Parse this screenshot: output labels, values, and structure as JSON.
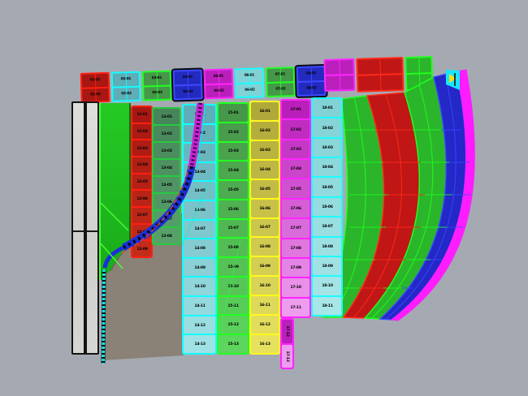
{
  "viewport": {
    "name": "3d-paneling-viewport",
    "background": "#a5aab2",
    "shadow_color": "#8a8177",
    "note": "Curved paneled surface model; panel labels shown as tiny IDs"
  },
  "palette": {
    "red": {
      "cell": "#a81712",
      "cell2": "#c32b1a",
      "border": "#ff1f12"
    },
    "teal": {
      "cell": "#47855a",
      "cell2": "#57a06a",
      "border": "#27c93f"
    },
    "cyan1": {
      "cell": "#5fadb6",
      "cell2": "#9fe2e5",
      "border": "#12fdff"
    },
    "green2": {
      "cell": "#46974a",
      "cell2": "#5cd65c",
      "border": "#22ff22"
    },
    "yellow": {
      "cell": "#b0a93a",
      "cell2": "#e6e260",
      "border": "#fff81d"
    },
    "magenta": {
      "cell": "#bb1fbb",
      "cell2": "#ee9dee",
      "border": "#ff24ff"
    },
    "cyan2": {
      "cell": "#82d2d5",
      "cell2": "#a8e6e8",
      "border": "#1cfcff"
    },
    "blue": {
      "cell": "#232ac0",
      "cell2": "#2b35cc",
      "border": "#3d49ff"
    },
    "band_green": {
      "cell": "#2bb52b",
      "cell2": "#3ecc3e",
      "border": "#1dff1d"
    },
    "band_red": {
      "cell": "#c01616",
      "cell2": "#d02222",
      "border": "#ff2a1a"
    },
    "band_blue": {
      "cell": "#2328c6",
      "cell2": "#2d34d6",
      "border": "#3a45ff"
    },
    "edge_magenta": {
      "cell": "#ff1cff",
      "cell2": "#ff4cff",
      "border": "#ff1cff"
    },
    "ribbon_blue": "#1b2fd6",
    "ribbon_magenta": "#c922d6",
    "ribbon_cyan": "#17dfe2",
    "ribbon_orange": "#ff4a16",
    "slat": "#d8d8d6",
    "flag_cyan": "#14e8ff",
    "flag_yellow": "#ffd912"
  },
  "rim": {
    "groups": [
      {
        "key": "red",
        "labels": [
          "01-01",
          "01-02"
        ]
      },
      {
        "key": "cyan1",
        "labels": [
          "02-01",
          "02-02"
        ]
      },
      {
        "key": "green2",
        "labels": [
          "03-01",
          "03-02"
        ]
      },
      {
        "key": "blue",
        "labels": [
          "04-01",
          "04-02"
        ]
      },
      {
        "key": "magenta",
        "labels": [
          "05-01",
          "05-02"
        ]
      },
      {
        "key": "cyan2",
        "labels": [
          "06-01",
          "06-02"
        ]
      },
      {
        "key": "green2",
        "labels": [
          "07-01",
          "07-02"
        ]
      },
      {
        "key": "blue",
        "labels": [
          "08-01",
          "08-02"
        ]
      }
    ],
    "plain_groups": [
      {
        "key": "magenta"
      },
      {
        "key": "band_red"
      },
      {
        "key": "band_green"
      }
    ]
  },
  "strips": [
    {
      "id": "red",
      "key": "red",
      "labels": [
        "12-01",
        "12-02",
        "12-03",
        "12-04",
        "12-05",
        "12-06",
        "12-07",
        "12-08",
        "12-09"
      ]
    },
    {
      "id": "tealA",
      "key": "teal",
      "labels": [
        "13-01",
        "13-02",
        "13-03",
        "13-04",
        "13-05",
        "13-06",
        "13-07",
        "13-08"
      ]
    },
    {
      "id": "cyan1",
      "key": "cyan1",
      "labels": [
        "14-01",
        "14-02",
        "14-03",
        "14-04",
        "14-05",
        "14-06",
        "14-07",
        "14-08",
        "14-09",
        "14-10",
        "14-11",
        "14-12",
        "14-13"
      ]
    },
    {
      "id": "green2",
      "key": "green2",
      "labels": [
        "15-01",
        "15-02",
        "15-03",
        "15-04",
        "15-05",
        "15-06",
        "15-07",
        "15-08",
        "15-09",
        "15-10",
        "15-11",
        "15-12",
        "15-13"
      ]
    },
    {
      "id": "yellow",
      "key": "yellow",
      "labels": [
        "16-01",
        "16-02",
        "16-03",
        "16-04",
        "16-05",
        "16-06",
        "16-07",
        "16-08",
        "16-09",
        "16-10",
        "16-11",
        "16-12",
        "16-13"
      ]
    },
    {
      "id": "magenta",
      "key": "magenta",
      "labels": [
        "17-01",
        "17-02",
        "17-03",
        "17-04",
        "17-05",
        "17-06",
        "17-07",
        "17-08",
        "17-09",
        "17-10",
        "17-11"
      ]
    },
    {
      "id": "magenta_tail",
      "key": "magenta",
      "vertical": true,
      "labels": [
        "17-12",
        "17-13"
      ]
    },
    {
      "id": "cyan2",
      "key": "cyan2",
      "labels": [
        "18-01",
        "18-02",
        "18-03",
        "18-04",
        "18-05",
        "18-06",
        "18-07",
        "18-08",
        "18-09",
        "18-10",
        "18-11"
      ]
    }
  ]
}
